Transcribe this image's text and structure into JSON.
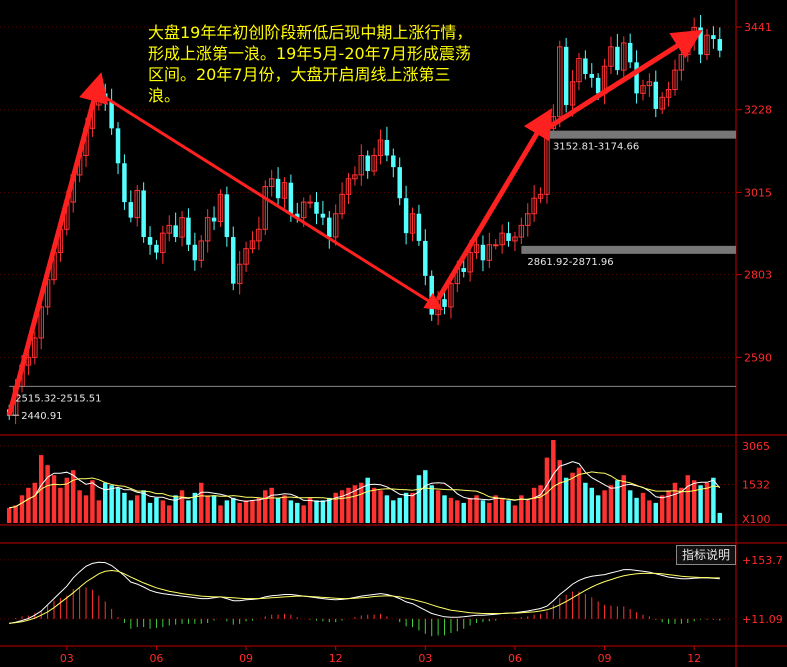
{
  "annotation": "大盘19年年初创阶段新低后现中期上涨行情，形成上涨第一浪。19年5月-20年7月形成震荡区间。20年7月份，大盘开启周线上涨第三浪。",
  "indicator_button": "指标说明",
  "colors": {
    "up": "#ff3232",
    "down": "#54ffff",
    "arrow": "#ff2020",
    "ma": "#ffff66",
    "axis": "#c00000"
  },
  "chart_data": [
    {
      "type": "candlestick",
      "title": "",
      "y_ticks": [
        "3441",
        "3228",
        "3015",
        "2803",
        "2590"
      ],
      "ylim": [
        2390,
        3490
      ],
      "x_ticks": [
        "03",
        "06",
        "09",
        "12",
        "03",
        "06",
        "09",
        "12"
      ],
      "point_labels": [
        "2440.91"
      ],
      "gap_zones": [
        {
          "label": "2515.32-2515.51",
          "low": 2515.32,
          "high": 2515.51
        },
        {
          "label": "2861.92-2871.96",
          "low": 2861.92,
          "high": 2871.96
        },
        {
          "label": "3152.81-3174.66",
          "low": 3152.81,
          "high": 3174.66
        }
      ],
      "close": [
        2441,
        2515,
        2570,
        2590,
        2640,
        2720,
        2790,
        2860,
        2920,
        2990,
        3060,
        3110,
        3180,
        3240,
        3270,
        3250,
        3180,
        3090,
        2990,
        2950,
        3020,
        2900,
        2880,
        2860,
        2910,
        2930,
        2900,
        2950,
        2880,
        2840,
        2890,
        2950,
        2940,
        3010,
        2900,
        2780,
        2830,
        2870,
        2890,
        2920,
        3030,
        3050,
        3000,
        3040,
        2960,
        2950,
        2990,
        2990,
        2960,
        2950,
        2900,
        2960,
        3010,
        3050,
        3060,
        3110,
        3070,
        3110,
        3150,
        3110,
        3080,
        3000,
        2910,
        2960,
        2890,
        2800,
        2700,
        2740,
        2720,
        2780,
        2820,
        2810,
        2860,
        2880,
        2840,
        2880,
        2880,
        2910,
        2890,
        2900,
        2930,
        2960,
        3000,
        3010,
        3180,
        3210,
        3390,
        3240,
        3300,
        3360,
        3320,
        3310,
        3270,
        3340,
        3390,
        3330,
        3400,
        3350,
        3270,
        3290,
        3300,
        3230,
        3260,
        3280,
        3330,
        3370,
        3410,
        3440,
        3370,
        3420,
        3410,
        3380
      ]
    },
    {
      "type": "bar",
      "title": "",
      "y_ticks": [
        "3065",
        "1532",
        "X100"
      ],
      "ylim": [
        0,
        3300
      ],
      "values": [
        600,
        700,
        1100,
        1400,
        1600,
        2700,
        2300,
        1900,
        1400,
        1800,
        2100,
        1300,
        1100,
        1700,
        900,
        1600,
        1500,
        1400,
        1200,
        900,
        1100,
        1300,
        800,
        1000,
        900,
        700,
        1100,
        1300,
        900,
        1200,
        1600,
        1100,
        1100,
        700,
        900,
        1000,
        800,
        900,
        900,
        1000,
        1300,
        1400,
        1000,
        1100,
        900,
        800,
        700,
        1000,
        900,
        900,
        1000,
        1200,
        1300,
        1400,
        1500,
        1600,
        1800,
        1400,
        1300,
        1100,
        900,
        1000,
        1200,
        1200,
        1900,
        2100,
        1500,
        1300,
        1100,
        1000,
        900,
        800,
        1000,
        1100,
        900,
        800,
        1100,
        1000,
        900,
        700,
        1100,
        900,
        1400,
        1500,
        2600,
        3300,
        2500,
        1800,
        2000,
        2200,
        1600,
        1400,
        1100,
        1300,
        1500,
        1700,
        1900,
        1300,
        1000,
        1200,
        900,
        800,
        1100,
        1300,
        1600,
        1400,
        1900,
        1700,
        1500,
        1600,
        1800,
        400
      ]
    },
    {
      "type": "line",
      "title": "",
      "y_ticks": [
        "+153.7",
        "+11.09"
      ],
      "ylim": [
        -40,
        175
      ],
      "series": [
        {
          "values": [
            0,
            3,
            7,
            12,
            20,
            30,
            45,
            60,
            75,
            90,
            110,
            125,
            138,
            145,
            148,
            147,
            140,
            128,
            115,
            100,
            95,
            88,
            80,
            75,
            72,
            70,
            68,
            66,
            64,
            62,
            60,
            60,
            62,
            64,
            60,
            55,
            55,
            57,
            58,
            60,
            64,
            67,
            68,
            70,
            70,
            68,
            66,
            64,
            62,
            60,
            58,
            57,
            58,
            60,
            63,
            66,
            68,
            70,
            72,
            70,
            66,
            60,
            52,
            48,
            40,
            32,
            24,
            20,
            16,
            15,
            15,
            16,
            18,
            20,
            20,
            21,
            22,
            24,
            25,
            26,
            28,
            30,
            33,
            36,
            42,
            55,
            70,
            82,
            95,
            104,
            110,
            114,
            116,
            118,
            122,
            126,
            130,
            130,
            128,
            126,
            124,
            120,
            116,
            112,
            110,
            108,
            108,
            109,
            110,
            110,
            109,
            108
          ]
        },
        {
          "values": [
            0,
            2,
            4,
            8,
            13,
            20,
            28,
            38,
            50,
            62,
            74,
            87,
            100,
            110,
            120,
            126,
            128,
            126,
            120,
            112,
            105,
            98,
            92,
            86,
            82,
            78,
            75,
            72,
            70,
            68,
            66,
            65,
            64,
            64,
            63,
            62,
            61,
            60,
            60,
            60,
            61,
            62,
            63,
            64,
            65,
            66,
            66,
            65,
            64,
            63,
            62,
            61,
            60,
            60,
            61,
            62,
            63,
            65,
            66,
            67,
            66,
            64,
            61,
            58,
            54,
            50,
            45,
            40,
            36,
            32,
            30,
            28,
            26,
            25,
            24,
            24,
            24,
            24,
            25,
            25,
            26,
            27,
            28,
            30,
            33,
            38,
            45,
            53,
            62,
            71,
            80,
            88,
            95,
            101,
            106,
            111,
            115,
            118,
            120,
            121,
            121,
            121,
            120,
            118,
            116,
            114,
            113,
            112,
            111,
            111,
            110,
            110
          ]
        }
      ]
    }
  ]
}
